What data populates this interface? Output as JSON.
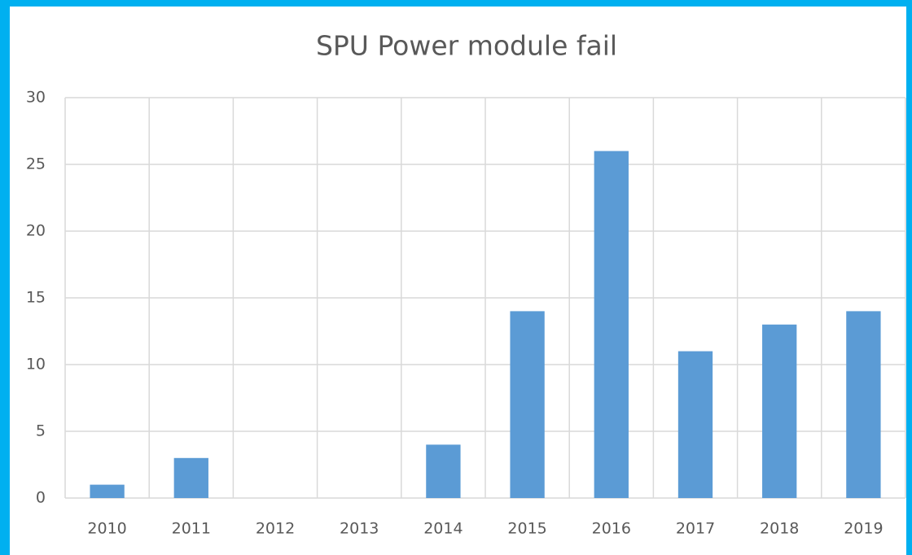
{
  "chart_data": {
    "type": "bar",
    "title": "SPU Power module fail",
    "categories": [
      "2010",
      "2011",
      "2012",
      "2013",
      "2014",
      "2015",
      "2016",
      "2017",
      "2018",
      "2019"
    ],
    "values": [
      1,
      3,
      0,
      0,
      4,
      14,
      26,
      11,
      13,
      14
    ],
    "color": "#5b9bd5",
    "ylim": [
      0,
      30
    ],
    "yticks": [
      0,
      5,
      10,
      15,
      20,
      25,
      30
    ],
    "grid": true
  }
}
